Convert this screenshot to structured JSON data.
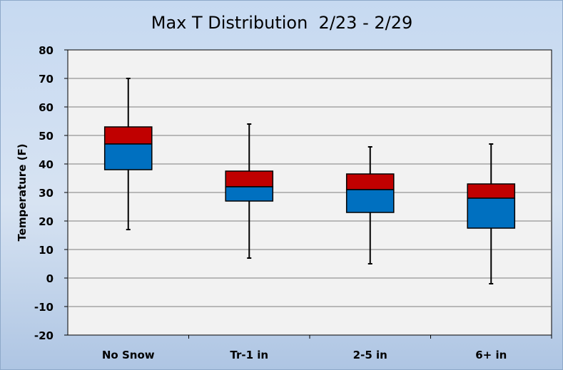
{
  "chart_data": {
    "type": "box",
    "title": "Max T Distribution  2/23 - 2/29",
    "xlabel": "",
    "ylabel": "Temperature (F)",
    "ylim": [
      -20,
      80
    ],
    "y_ticks": [
      80,
      70,
      60,
      50,
      40,
      30,
      20,
      10,
      0,
      -10,
      -20
    ],
    "grid": true,
    "categories": [
      "No Snow",
      "Tr-1 in",
      "2-5 in",
      "6+ in"
    ],
    "boxes": [
      {
        "min": 17,
        "q1": 38,
        "median": 47,
        "q3": 53,
        "max": 70
      },
      {
        "min": 7,
        "q1": 27,
        "median": 32,
        "q3": 37.5,
        "max": 54
      },
      {
        "min": 5,
        "q1": 23,
        "median": 31,
        "q3": 36.5,
        "max": 46
      },
      {
        "min": -2,
        "q1": 17.5,
        "median": 28,
        "q3": 33,
        "max": 47
      }
    ],
    "colors": {
      "lower_box": "#0070C0",
      "upper_box": "#C00000",
      "plot_bg": "#F2F2F2",
      "grid": "#7F7F7F",
      "bg_top": "#DCE6F2",
      "bg_bottom": "#B9CDE5"
    }
  }
}
